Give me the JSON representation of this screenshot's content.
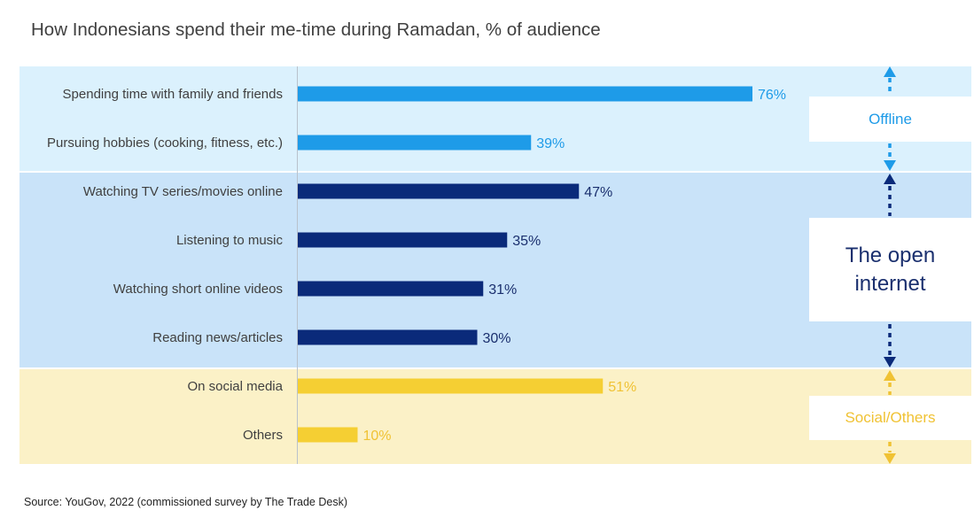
{
  "title": "How Indonesians spend their me-time during Ramadan, % of audience",
  "source": "Source: YouGov, 2022 (commissioned survey by The Trade Desk)",
  "groups": [
    {
      "label": "Offline",
      "band_color": "#dbf1fd",
      "bar_color": "#1e9be8",
      "label_color": "#1e9be8",
      "arrow_color": "#1e9be8"
    },
    {
      "label": "The open internet",
      "band_color": "#c9e3f9",
      "bar_color": "#0a2a7a",
      "label_color": "#1a2f6e",
      "arrow_color": "#0a2a7a"
    },
    {
      "label": "Social/Others",
      "band_color": "#fbf1c7",
      "bar_color": "#f5cf33",
      "label_color": "#f0c233",
      "arrow_color": "#f0c233"
    }
  ],
  "chart_data": {
    "type": "bar",
    "orientation": "horizontal",
    "title": "How Indonesians spend their me-time during Ramadan, % of audience",
    "xlabel": "",
    "ylabel": "",
    "xlim": [
      0,
      100
    ],
    "categories": [
      "Spending time with family and friends",
      "Pursuing hobbies (cooking, fitness, etc.)",
      "Watching TV series/movies online",
      "Listening to music",
      "Watching short online videos",
      "Reading news/articles",
      "On social media",
      "Others"
    ],
    "values": [
      76,
      39,
      47,
      35,
      31,
      30,
      51,
      10
    ],
    "value_labels": [
      "76%",
      "39%",
      "47%",
      "35%",
      "31%",
      "30%",
      "51%",
      "10%"
    ],
    "group_index": [
      0,
      0,
      1,
      1,
      1,
      1,
      2,
      2
    ],
    "grid": false,
    "legend": "none"
  }
}
